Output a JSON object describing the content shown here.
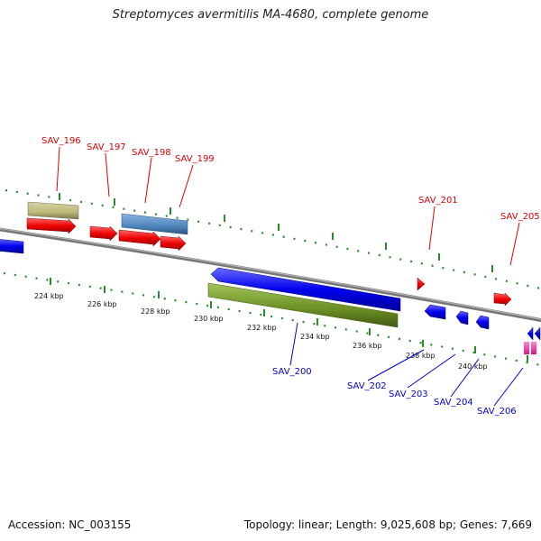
{
  "title": "Streptomyces avermitilis MA-4680, complete genome",
  "footer": {
    "accession": "Accession: NC_003155",
    "summary": "Topology: linear; Length: 9,025,608 bp; Genes: 7,669"
  },
  "colors": {
    "forward_label": "#dd0000",
    "reverse_label": "#0000cc",
    "tick": "#2a8a2a",
    "axis": "#777777",
    "gene_red": "#ee0000",
    "gene_blue": "#0000ee",
    "gene_tan": "#bdb77a",
    "gene_steel": "#4f86bd",
    "gene_olive": "#6b8e23",
    "gene_pink": "#ff33aa"
  },
  "scale": {
    "tick_labels": [
      "224 kbp",
      "226 kbp",
      "228 kbp",
      "230 kbp",
      "232 kbp",
      "234 kbp",
      "236 kbp",
      "238 kbp",
      "240 kbp"
    ]
  },
  "forward_labels": [
    "SAV_196",
    "SAV_197",
    "SAV_198",
    "SAV_199",
    "SAV_201",
    "SAV_205"
  ],
  "reverse_labels": [
    "SAV_200",
    "SAV_202",
    "SAV_203",
    "SAV_204",
    "SAV_206"
  ]
}
